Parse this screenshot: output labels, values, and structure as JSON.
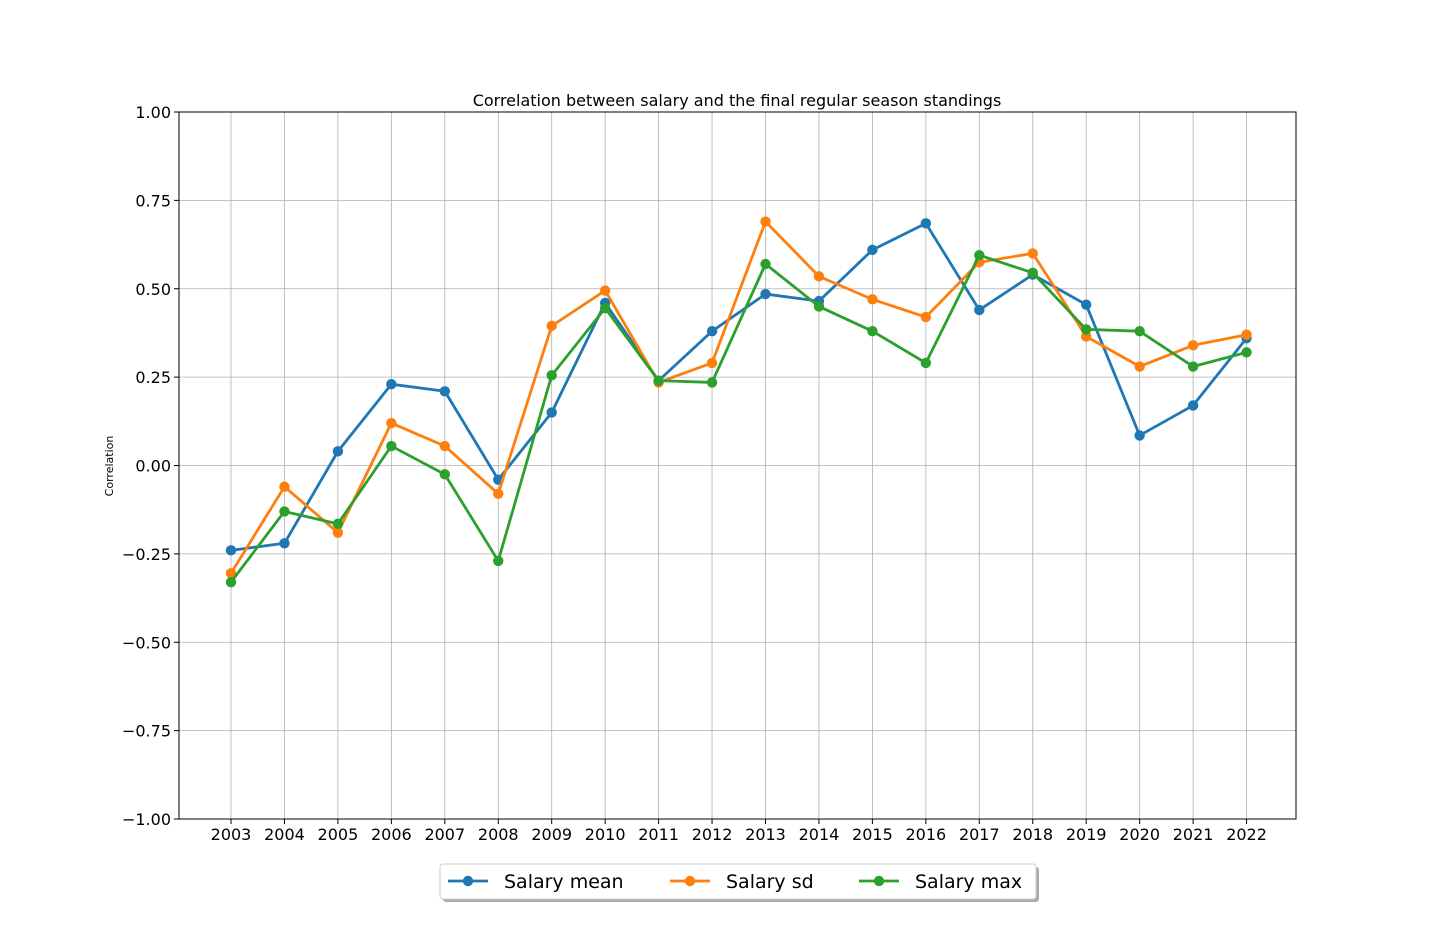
{
  "chart_data": {
    "type": "line",
    "title": "Correlation between salary and the final regular season standings",
    "xlabel": "",
    "ylabel": "Correlation",
    "ylim": [
      -1.0,
      1.0
    ],
    "yticks": [
      "1.00",
      "0.75",
      "0.50",
      "0.25",
      "0.00",
      "−0.25",
      "−0.50",
      "−0.75",
      "−1.00"
    ],
    "ytick_values": [
      1.0,
      0.75,
      0.5,
      0.25,
      0.0,
      -0.25,
      -0.5,
      -0.75,
      -1.0
    ],
    "grid": true,
    "legend_position": "bottom-center",
    "categories": [
      "2003",
      "2004",
      "2005",
      "2006",
      "2007",
      "2008",
      "2009",
      "2010",
      "2011",
      "2012",
      "2013",
      "2014",
      "2015",
      "2016",
      "2017",
      "2018",
      "2019",
      "2020",
      "2021",
      "2022"
    ],
    "series": [
      {
        "name": "Salary mean",
        "color": "#1f77b4",
        "values": [
          -0.24,
          -0.22,
          0.04,
          0.23,
          0.21,
          -0.04,
          0.15,
          0.46,
          0.24,
          0.38,
          0.485,
          0.465,
          0.61,
          0.685,
          0.44,
          0.54,
          0.455,
          0.085,
          0.17,
          0.36
        ]
      },
      {
        "name": "Salary sd",
        "color": "#ff7f0e",
        "values": [
          -0.305,
          -0.06,
          -0.19,
          0.12,
          0.055,
          -0.08,
          0.395,
          0.495,
          0.235,
          0.29,
          0.69,
          0.535,
          0.47,
          0.42,
          0.575,
          0.6,
          0.365,
          0.28,
          0.34,
          0.37
        ]
      },
      {
        "name": "Salary max",
        "color": "#2ca02c",
        "values": [
          -0.33,
          -0.13,
          -0.165,
          0.055,
          -0.025,
          -0.27,
          0.255,
          0.445,
          0.24,
          0.235,
          0.57,
          0.45,
          0.38,
          0.29,
          0.595,
          0.545,
          0.385,
          0.38,
          0.28,
          0.32
        ]
      }
    ]
  }
}
